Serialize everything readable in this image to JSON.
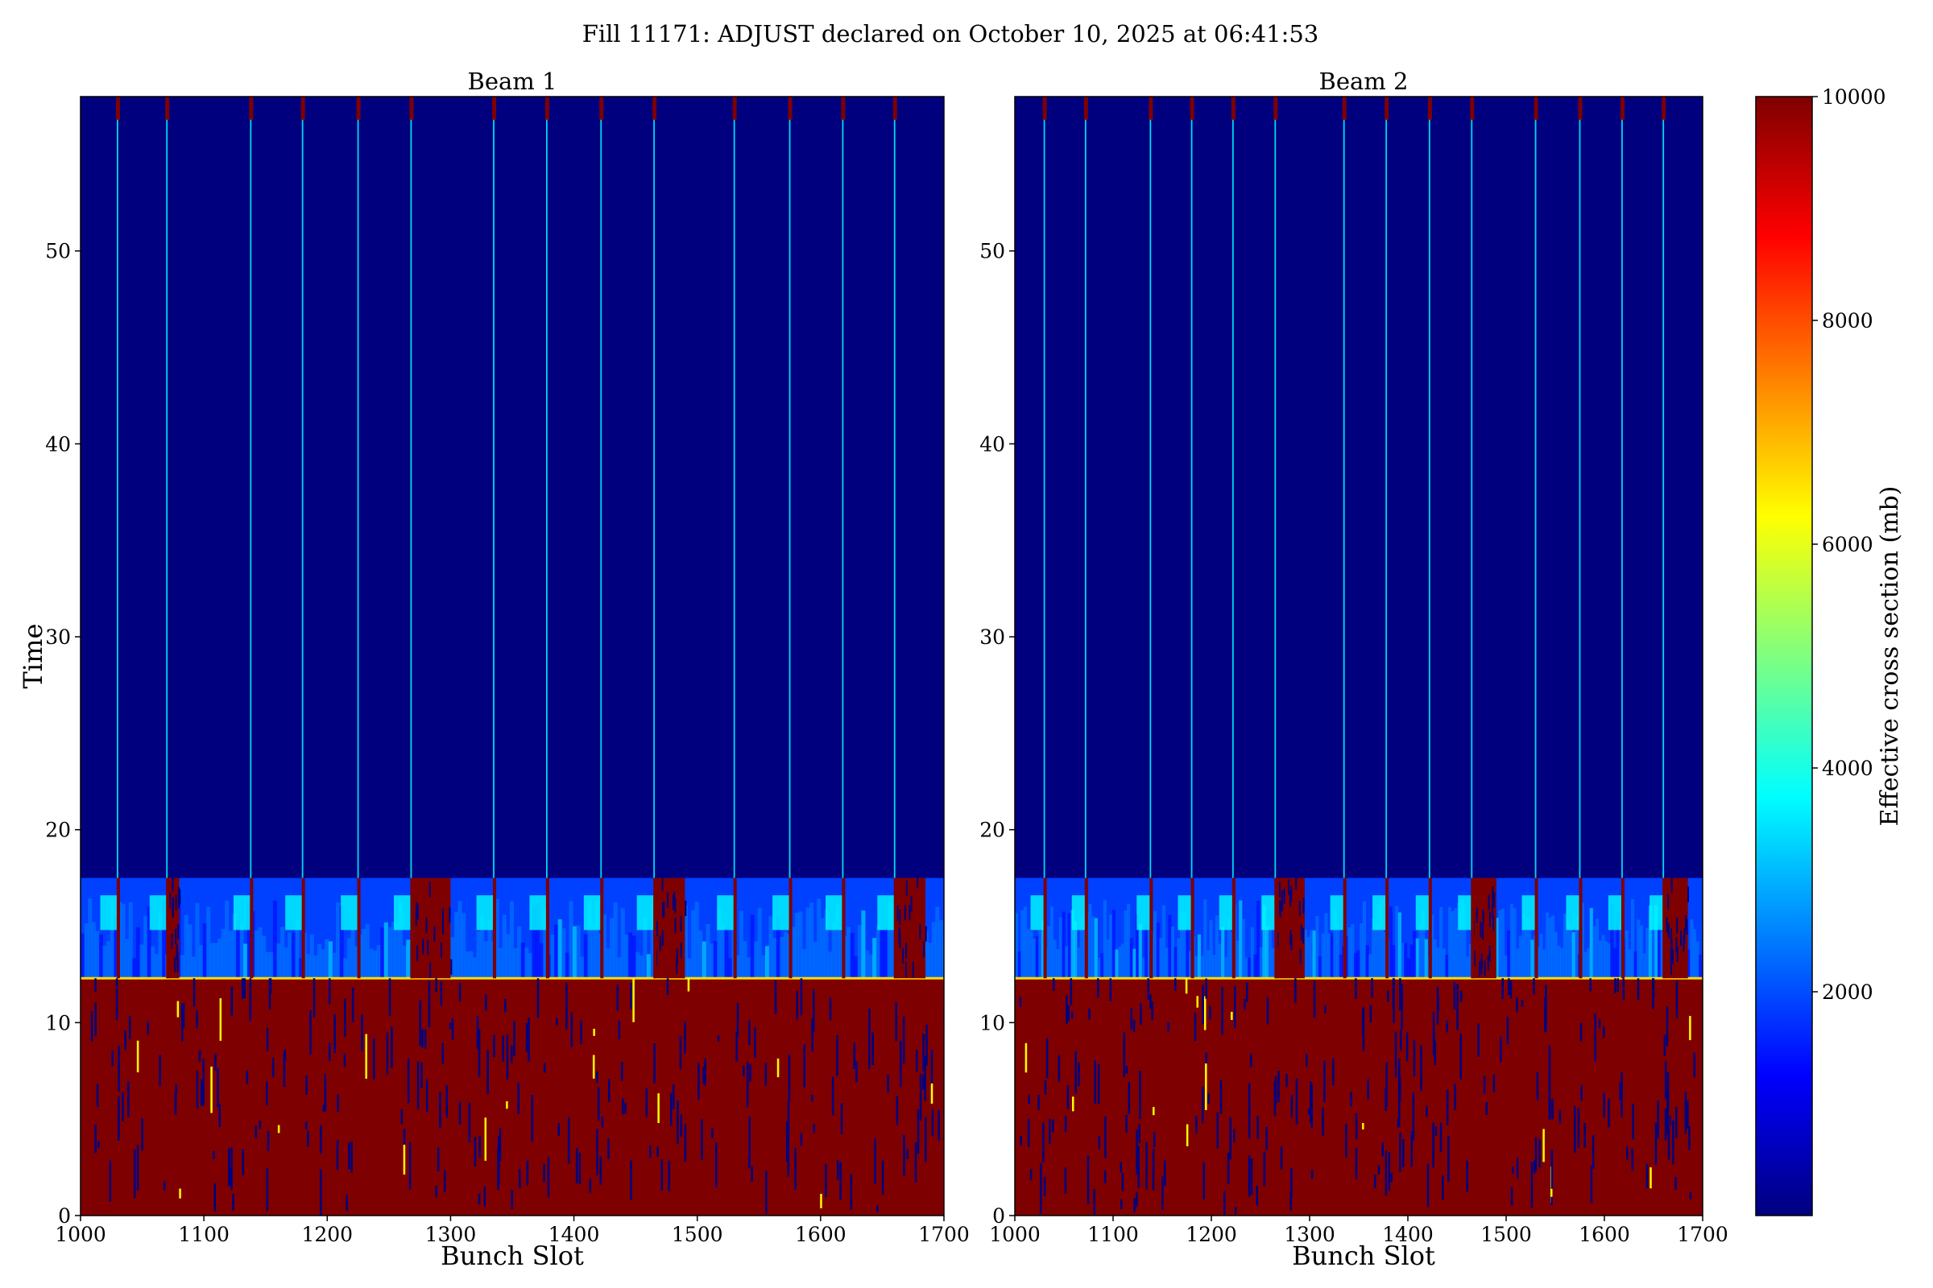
{
  "figure": {
    "title": "Fill 11171: ADJUST declared on October 10, 2025 at 06:41:53"
  },
  "chart_data": [
    {
      "type": "heatmap",
      "title": "Beam 1",
      "xlabel": "Bunch Slot",
      "ylabel": "Time",
      "xlim": [
        1000,
        1700
      ],
      "ylim": [
        0,
        58
      ],
      "x_ticks": [
        "1000",
        "1100",
        "1200",
        "1300",
        "1400",
        "1500",
        "1600",
        "1700"
      ],
      "y_ticks": [
        "0",
        "10",
        "20",
        "30",
        "40",
        "50"
      ],
      "injection_bunch_slots": [
        1030,
        1070,
        1138,
        1180,
        1225,
        1268,
        1335,
        1378,
        1422,
        1465,
        1530,
        1575,
        1618,
        1660
      ],
      "saturated_trains": [
        [
          1070,
          1080
        ],
        [
          1268,
          1300
        ],
        [
          1465,
          1490
        ],
        [
          1660,
          1685
        ]
      ],
      "saturation_end_time": 12.3,
      "transition_band": [
        12.3,
        17.5
      ],
      "background_value_mb": 300,
      "saturated_value_mb": 10000
    },
    {
      "type": "heatmap",
      "title": "Beam 2",
      "xlabel": "Bunch Slot",
      "ylabel": "",
      "xlim": [
        1000,
        1700
      ],
      "ylim": [
        0,
        58
      ],
      "x_ticks": [
        "1000",
        "1100",
        "1200",
        "1300",
        "1400",
        "1500",
        "1600",
        "1700"
      ],
      "y_ticks": [
        "0",
        "10",
        "20",
        "30",
        "40",
        "50"
      ],
      "injection_bunch_slots": [
        1030,
        1072,
        1138,
        1180,
        1222,
        1265,
        1335,
        1378,
        1422,
        1465,
        1530,
        1575,
        1618,
        1660
      ],
      "saturated_trains": [
        [
          1265,
          1295
        ],
        [
          1465,
          1490
        ],
        [
          1660,
          1685
        ]
      ],
      "saturation_end_time": 12.3,
      "transition_band": [
        12.3,
        17.5
      ],
      "background_value_mb": 300,
      "saturated_value_mb": 10000
    }
  ],
  "colorbar": {
    "label": "Effective cross section (mb)",
    "range": [
      0,
      10000
    ],
    "ticks": [
      "2000",
      "4000",
      "6000",
      "8000",
      "10000"
    ],
    "colormap": [
      "#00007f",
      "#0000ff",
      "#007fff",
      "#00ffff",
      "#7fff7f",
      "#ffff00",
      "#ff7f00",
      "#ff0000",
      "#7f0000"
    ]
  }
}
